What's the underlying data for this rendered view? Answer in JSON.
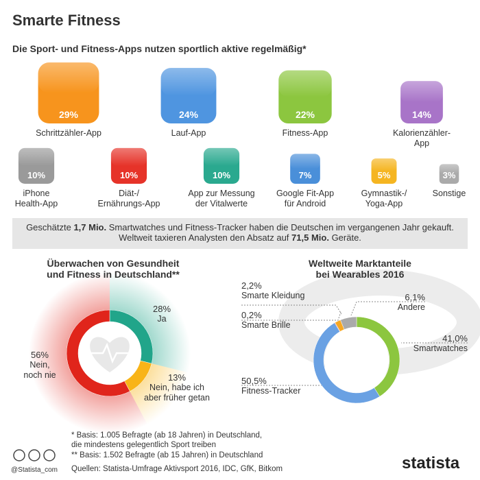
{
  "header": {
    "title": "Smarte Fitness",
    "subtitle": "Die Sport- und Fitness-Apps nutzen sportlich aktive regelmäßig*"
  },
  "chart_data": [
    {
      "type": "pictogram",
      "categories": [
        "Schrittzähler-App",
        "Lauf-App",
        "Fitness-App",
        "Kalorienzähler-\nApp",
        "iPhone\nHealth-App",
        "Diät-/\nErnährungs-App",
        "App zur Messung\nder Vitalwerte",
        "Google Fit-App\nfür Android",
        "Gymnastik-/\nYoga-App",
        "Sonstige"
      ],
      "values": [
        29,
        24,
        22,
        14,
        10,
        10,
        10,
        7,
        5,
        3
      ],
      "value_labels": [
        "29%",
        "24%",
        "22%",
        "14%",
        "10%",
        "10%",
        "10%",
        "7%",
        "5%",
        "3%"
      ],
      "colors": [
        "#f7941d",
        "#4f95e0",
        "#8cc63f",
        "#a874c8",
        "#9a9a9a",
        "#e63329",
        "#2aa98f",
        "#4a8fd9",
        "#f5b521",
        "#aaaaaa"
      ]
    },
    {
      "type": "pie",
      "title": "Überwachen von Gesundheit\nund Fitness in Deutschland**",
      "categories": [
        "Ja",
        "Nein, habe ich\naber früher getan",
        "Nein,\nnoch nie"
      ],
      "values": [
        28,
        13,
        56
      ],
      "value_labels": [
        "28%",
        "13%",
        "56%"
      ],
      "colors": [
        "#21a58a",
        "#f8b418",
        "#e0251b"
      ]
    },
    {
      "type": "pie",
      "title": "Weltweite Marktanteile\nbei Wearables 2016",
      "categories": [
        "Smartwatches",
        "Fitness-Tracker",
        "Smarte Brille",
        "Smarte Kleidung",
        "Andere"
      ],
      "values": [
        41.0,
        50.5,
        0.2,
        2.2,
        6.1
      ],
      "value_labels": [
        "41,0%",
        "50,5%",
        "0,2%",
        "2,2%",
        "6,1%"
      ],
      "colors": [
        "#8cc63f",
        "#6aa1e3",
        "#e0251b",
        "#f7a823",
        "#aaaaaa"
      ]
    }
  ],
  "info": [
    "Geschätzte ",
    "1,7 Mio.",
    " Smartwatches und Fitness-Tracker haben die Deutschen im vergangenen Jahr gekauft.\nWeltweit taxieren Analysten den Absatz auf ",
    "71,5 Mio.",
    " Geräte."
  ],
  "footer": {
    "notes": [
      "*  Basis: 1.005 Befragte (ab 18 Jahren) in Deutschland,\n    die mindestens gelegentlich Sport treiben",
      "** Basis: 1.502 Befragte (ab 15 Jahren) in Deutschland"
    ],
    "sources": "Quellen: Statista-Umfrage Aktivsport 2016, IDC, GfK, Bitkom",
    "handle": "@Statista_com",
    "logo": "statista"
  }
}
